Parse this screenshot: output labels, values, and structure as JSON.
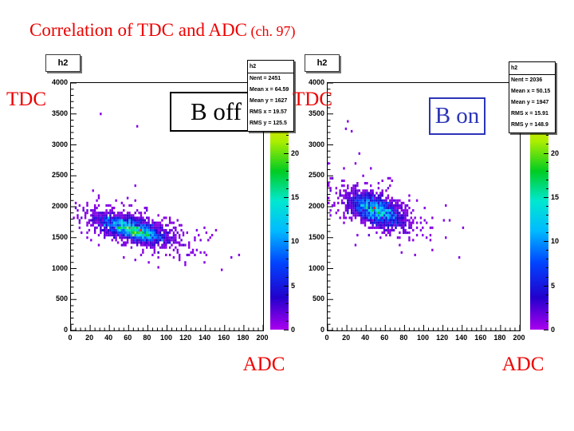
{
  "title": {
    "main": "Correlation of TDC and ADC",
    "suffix": " (ch. 97)"
  },
  "colors": {
    "title_red": "#ee0000",
    "axis_label_red": "#ee0000",
    "b_off_black": "#000000",
    "b_on_blue": "#2b35b8"
  },
  "palette": {
    "fractions": [
      0,
      0.13,
      0.27,
      0.4,
      0.52,
      0.64,
      0.76,
      0.88,
      1
    ],
    "stops": [
      "#aa00ee",
      "#2200cc",
      "#0044ff",
      "#00bbff",
      "#00e8d0",
      "#00cc22",
      "#aaee00",
      "#ffdd00",
      "#ff2200"
    ]
  },
  "chart_data": [
    {
      "type": "heatmap",
      "pad_title": "h2",
      "annotation": "B off",
      "annotation_color": "#000000",
      "xlabel": "ADC",
      "ylabel": "TDC",
      "xlim": [
        0,
        200
      ],
      "ylim": [
        0,
        4000
      ],
      "x_ticks": [
        0,
        20,
        40,
        60,
        80,
        100,
        120,
        140,
        160,
        180,
        200
      ],
      "y_ticks": [
        0,
        500,
        1000,
        1500,
        2000,
        2500,
        3000,
        3500,
        4000
      ],
      "colorbar": {
        "ticks": [
          0,
          5,
          10,
          15,
          20
        ],
        "max": 28
      },
      "stats": {
        "name": "h2",
        "entries": 2451,
        "mean_x": 64.59,
        "mean_y": 1627,
        "rms_x": 19.57,
        "rms_y": 125.5
      },
      "stats_lines": [
        "h2",
        "Nent = 2451",
        "Mean x = 64.59",
        "Mean y =  1627",
        "RMS x  = 19.57",
        "RMS y  = 125.5"
      ],
      "correlation": -0.62,
      "outliers": [
        [
          30,
          3500
        ],
        [
          69,
          3300
        ],
        [
          140,
          1560
        ],
        [
          150,
          1610
        ]
      ]
    },
    {
      "type": "heatmap",
      "pad_title": "h2",
      "annotation": "B on",
      "annotation_color": "#2b35b8",
      "xlabel": "ADC",
      "ylabel": "TDC",
      "xlim": [
        0,
        200
      ],
      "ylim": [
        0,
        4000
      ],
      "x_ticks": [
        0,
        20,
        40,
        60,
        80,
        100,
        120,
        140,
        160,
        180,
        200
      ],
      "y_ticks": [
        0,
        500,
        1000,
        1500,
        2000,
        2500,
        3000,
        3500,
        4000
      ],
      "colorbar": {
        "ticks": [
          0,
          5,
          10,
          15,
          20
        ],
        "max": 28
      },
      "stats": {
        "name": "h2",
        "entries": 2036,
        "mean_x": 50.15,
        "mean_y": 1947,
        "rms_x": 15.91,
        "rms_y": 148.9
      },
      "stats_lines": [
        "h2",
        "Nent = 2036",
        "Mean x = 50.15",
        "Mean y =  1947",
        "RMS x  = 15.91",
        "RMS y  = 148.9"
      ],
      "correlation": -0.55,
      "outliers": [
        [
          21,
          3390
        ],
        [
          18,
          3260
        ],
        [
          25,
          3210
        ],
        [
          33,
          2840
        ],
        [
          29,
          2700
        ],
        [
          44,
          2620
        ]
      ]
    }
  ]
}
